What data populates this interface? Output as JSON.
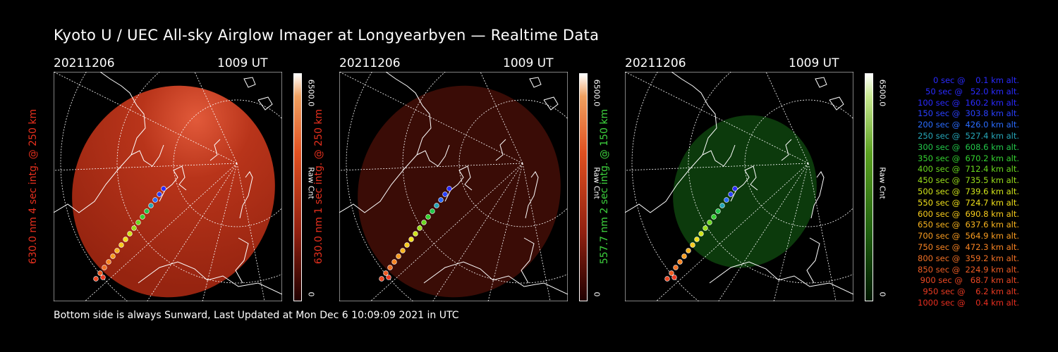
{
  "title": "Kyoto U / UEC All-sky Airglow Imager at Longyearbyen — Realtime Data",
  "footer": "Bottom side is always Sunward, Last Updated at Mon Dec  6 10:09:09 2021 in UTC",
  "panels": [
    {
      "date": "20211206",
      "time": "1009 UT",
      "side_label": "630.0 nm 4 sec intg. @ 250 km",
      "side_color": "#e8301e",
      "cbar_max": "6500.0",
      "cbar_unit": "Raw Cnt",
      "cbar_min": "0",
      "theme": "red-bright"
    },
    {
      "date": "20211206",
      "time": "1009 UT",
      "side_label": "630.0 nm 1 sec intg. @ 250 km",
      "side_color": "#e8301e",
      "cbar_max": "6500.0",
      "cbar_unit": "Raw Cnt",
      "cbar_min": "0",
      "theme": "red-dark"
    },
    {
      "date": "20211206",
      "time": "1009 UT",
      "side_label": "557.7 nm 2 sec intg. @ 150 km",
      "side_color": "#3ed43e",
      "cbar_max": "6500.0",
      "cbar_unit": "Raw Cnt",
      "cbar_min": "0",
      "theme": "green"
    }
  ],
  "legend": [
    {
      "text": "   0 sec @    0.1 km alt.",
      "color": "#2a2aff"
    },
    {
      "text": "  50 sec @   52.0 km alt.",
      "color": "#2a2aff"
    },
    {
      "text": " 100 sec @  160.2 km alt.",
      "color": "#2a2aff"
    },
    {
      "text": " 150 sec @  303.8 km alt.",
      "color": "#2a40ff"
    },
    {
      "text": " 200 sec @  426.0 km alt.",
      "color": "#2a6cff"
    },
    {
      "text": " 250 sec @  527.4 km alt.",
      "color": "#26a6b8"
    },
    {
      "text": " 300 sec @  608.6 km alt.",
      "color": "#22c84a"
    },
    {
      "text": " 350 sec @  670.2 km alt.",
      "color": "#34d230"
    },
    {
      "text": " 400 sec @  712.4 km alt.",
      "color": "#6ad81e"
    },
    {
      "text": " 450 sec @  735.5 km alt.",
      "color": "#9ade1a"
    },
    {
      "text": " 500 sec @  739.6 km alt.",
      "color": "#d0e41a"
    },
    {
      "text": " 550 sec @  724.7 km alt.",
      "color": "#f0e01a"
    },
    {
      "text": " 600 sec @  690.8 km alt.",
      "color": "#f8cc1c"
    },
    {
      "text": " 650 sec @  637.6 km alt.",
      "color": "#f8b41e"
    },
    {
      "text": " 700 sec @  564.9 km alt.",
      "color": "#f89c20"
    },
    {
      "text": " 750 sec @  472.3 km alt.",
      "color": "#f88422"
    },
    {
      "text": " 800 sec @  359.2 km alt.",
      "color": "#f07024"
    },
    {
      "text": " 850 sec @  224.9 km alt.",
      "color": "#ee5c24"
    },
    {
      "text": " 900 sec @   68.7 km alt.",
      "color": "#ec4824"
    },
    {
      "text": " 950 sec @    6.2 km alt.",
      "color": "#ea3a22"
    },
    {
      "text": "1000 sec @    0.4 km alt.",
      "color": "#e82e20"
    }
  ]
}
